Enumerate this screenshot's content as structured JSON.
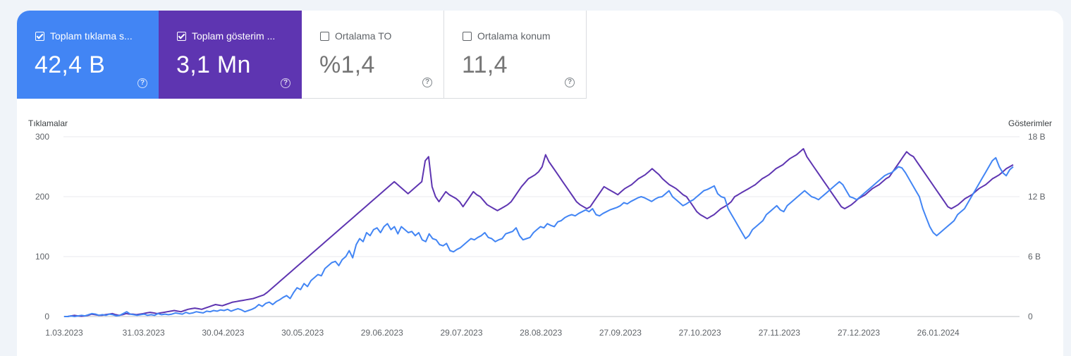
{
  "tiles": [
    {
      "label": "Toplam tıklama s...",
      "value": "42,4 B",
      "checked": true,
      "color": "#4285f4"
    },
    {
      "label": "Toplam gösterim ...",
      "value": "3,1 Mn",
      "checked": true,
      "color": "#5e35b1"
    },
    {
      "label": "Ortalama TO",
      "value": "%1,4",
      "checked": false
    },
    {
      "label": "Ortalama konum",
      "value": "11,4",
      "checked": false
    }
  ],
  "help_glyph": "?",
  "chart_data": {
    "type": "line",
    "ylabel_left": "Tıklamalar",
    "ylabel_right": "Gösterimler",
    "y_left_ticks": [
      "300",
      "200",
      "100",
      "0"
    ],
    "y_right_ticks": [
      "18 B",
      "12 B",
      "6 B",
      "0"
    ],
    "y_left_range": [
      0,
      300
    ],
    "y_right_range": [
      0,
      18000
    ],
    "x_ticks": [
      "1.03.2023",
      "31.03.2023",
      "30.04.2023",
      "30.05.2023",
      "29.06.2023",
      "29.07.2023",
      "28.08.2023",
      "27.09.2023",
      "27.10.2023",
      "27.11.2023",
      "27.12.2023",
      "26.01.2024"
    ],
    "grid": true,
    "series": [
      {
        "name": "Toplam tıklama s...",
        "axis": "left",
        "color": "#4285f4",
        "values": [
          0,
          0,
          1,
          0,
          1,
          2,
          1,
          3,
          5,
          4,
          2,
          3,
          2,
          4,
          3,
          1,
          2,
          5,
          8,
          4,
          3,
          2,
          3,
          4,
          2,
          3,
          2,
          5,
          3,
          4,
          3,
          4,
          6,
          5,
          4,
          7,
          5,
          6,
          8,
          7,
          6,
          9,
          8,
          10,
          9,
          11,
          10,
          12,
          9,
          11,
          13,
          11,
          8,
          10,
          12,
          15,
          20,
          17,
          22,
          24,
          20,
          25,
          28,
          32,
          35,
          30,
          40,
          48,
          45,
          55,
          50,
          60,
          65,
          70,
          68,
          80,
          85,
          90,
          92,
          85,
          95,
          100,
          110,
          98,
          120,
          130,
          125,
          140,
          135,
          145,
          148,
          140,
          150,
          155,
          145,
          150,
          138,
          150,
          145,
          140,
          142,
          135,
          140,
          128,
          125,
          138,
          130,
          128,
          120,
          118,
          122,
          110,
          108,
          112,
          115,
          120,
          125,
          130,
          128,
          132,
          135,
          140,
          132,
          130,
          125,
          128,
          130,
          138,
          140,
          142,
          148,
          135,
          128,
          130,
          132,
          140,
          145,
          150,
          148,
          155,
          152,
          150,
          158,
          160,
          165,
          168,
          170,
          168,
          172,
          175,
          178,
          175,
          180,
          170,
          168,
          172,
          175,
          178,
          180,
          182,
          185,
          190,
          188,
          192,
          195,
          198,
          200,
          198,
          195,
          192,
          196,
          199,
          200,
          205,
          210,
          200,
          195,
          190,
          185,
          188,
          192,
          195,
          200,
          205,
          210,
          212,
          215,
          218,
          205,
          200,
          198,
          180,
          170,
          160,
          150,
          140,
          130,
          135,
          145,
          150,
          155,
          160,
          170,
          175,
          180,
          185,
          178,
          175,
          185,
          190,
          195,
          200,
          205,
          210,
          205,
          200,
          198,
          195,
          200,
          205,
          210,
          215,
          220,
          225,
          220,
          210,
          200,
          198,
          195,
          200,
          205,
          210,
          215,
          220,
          225,
          230,
          235,
          238,
          240,
          245,
          250,
          248,
          240,
          230,
          220,
          210,
          200,
          180,
          165,
          150,
          140,
          135,
          140,
          145,
          150,
          155,
          160,
          170,
          175,
          180,
          190,
          200,
          210,
          220,
          230,
          240,
          250,
          260,
          265,
          250,
          240,
          235,
          245,
          250
        ]
      },
      {
        "name": "Toplam gösterim ...",
        "axis": "right",
        "color": "#5e35b1",
        "values": [
          0,
          0,
          60,
          120,
          60,
          30,
          60,
          120,
          240,
          180,
          120,
          120,
          180,
          240,
          300,
          180,
          120,
          180,
          300,
          240,
          240,
          180,
          240,
          300,
          360,
          420,
          360,
          300,
          360,
          420,
          480,
          540,
          600,
          540,
          480,
          600,
          720,
          780,
          840,
          780,
          720,
          840,
          960,
          1080,
          1200,
          1140,
          1080,
          1200,
          1320,
          1440,
          1500,
          1560,
          1620,
          1680,
          1740,
          1800,
          1920,
          2040,
          2160,
          2400,
          2700,
          3000,
          3300,
          3600,
          3900,
          4200,
          4500,
          4800,
          5100,
          5400,
          5700,
          6000,
          6300,
          6600,
          6900,
          7200,
          7500,
          7800,
          8100,
          8400,
          8700,
          9000,
          9300,
          9600,
          9900,
          10200,
          10500,
          10800,
          11100,
          11400,
          11700,
          12000,
          12300,
          12600,
          12900,
          13200,
          13500,
          13200,
          12900,
          12600,
          12300,
          12600,
          12900,
          13200,
          13500,
          15600,
          16000,
          13000,
          12000,
          11500,
          12000,
          12500,
          12200,
          12000,
          11800,
          11500,
          11000,
          11500,
          12000,
          12500,
          12200,
          12000,
          11600,
          11200,
          11000,
          10800,
          10600,
          10800,
          11000,
          11200,
          11500,
          12000,
          12500,
          13000,
          13400,
          13800,
          14000,
          14200,
          14500,
          15000,
          16200,
          15500,
          15000,
          14500,
          14000,
          13500,
          13000,
          12500,
          12000,
          11500,
          11200,
          11000,
          10800,
          11000,
          11500,
          12000,
          12500,
          13000,
          12800,
          12600,
          12400,
          12200,
          12500,
          12800,
          13000,
          13200,
          13500,
          13800,
          14000,
          14200,
          14500,
          14800,
          14500,
          14200,
          13800,
          13500,
          13200,
          13000,
          12800,
          12500,
          12200,
          12000,
          11500,
          11000,
          10500,
          10200,
          10000,
          9800,
          10000,
          10200,
          10500,
          10800,
          11000,
          11200,
          11500,
          12000,
          12200,
          12400,
          12600,
          12800,
          13000,
          13200,
          13500,
          13800,
          14000,
          14200,
          14500,
          14800,
          15000,
          15200,
          15500,
          15800,
          16000,
          16200,
          16500,
          16800,
          16000,
          15500,
          15000,
          14500,
          14000,
          13500,
          13000,
          12500,
          12000,
          11500,
          11000,
          10800,
          11000,
          11200,
          11500,
          11800,
          12000,
          12200,
          12500,
          12800,
          13000,
          13200,
          13500,
          13800,
          14000,
          14500,
          15000,
          15500,
          16000,
          16500,
          16200,
          16000,
          15500,
          15000,
          14500,
          14000,
          13500,
          13000,
          12500,
          12000,
          11500,
          11000,
          10800,
          11000,
          11200,
          11500,
          11800,
          12000,
          12200,
          12500,
          12800,
          13000,
          13200,
          13500,
          13800,
          14000,
          14200,
          14500,
          14800,
          15000,
          15200
        ]
      }
    ]
  }
}
